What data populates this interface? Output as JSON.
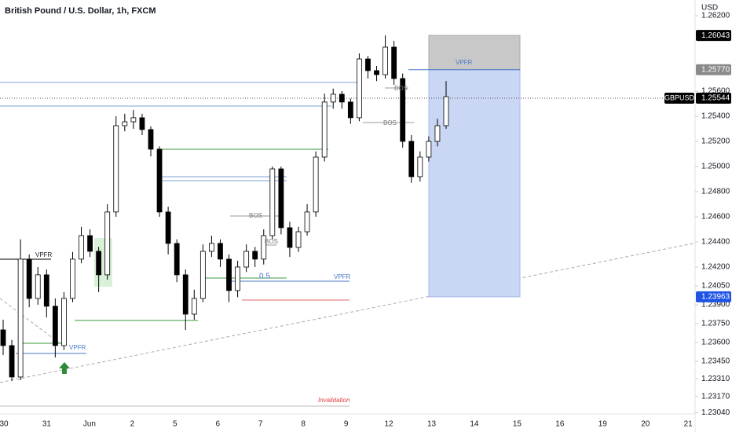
{
  "chart_data": {
    "type": "candlestick",
    "title": "British Pound / U.S. Dollar, 1h, FXCM",
    "currency": "USD",
    "symbol_label": "GBPUSD",
    "up_color": "#ffffff",
    "down_color": "#000000",
    "x_labels": [
      "30",
      "31",
      "Jun",
      "2",
      "5",
      "6",
      "7",
      "8",
      "9",
      "12",
      "13",
      "14",
      "15",
      "16",
      "19",
      "20",
      "21"
    ],
    "open": [
      1.237,
      1.23575,
      1.23325,
      1.24263,
      1.2395,
      1.24138,
      1.23888,
      1.23575,
      1.2395,
      1.24263,
      1.2445,
      1.24325,
      1.24138,
      1.24638,
      1.25325,
      1.25356,
      1.25388,
      1.25294,
      1.25138,
      1.24638,
      1.24388,
      1.24138,
      1.23825,
      1.2395,
      1.24325,
      1.24388,
      1.24263,
      1.24013,
      1.242,
      1.24325,
      1.24263,
      1.2445,
      1.24981,
      1.24513,
      1.24356,
      1.24481,
      1.24638,
      1.25075,
      1.25513,
      1.25575,
      1.25513,
      1.25388,
      1.25856,
      1.25763,
      1.25731,
      1.2595,
      1.257,
      1.252,
      1.24919,
      1.25075,
      1.252,
      1.25325
    ],
    "high": [
      1.2378,
      1.2362,
      1.2442,
      1.243,
      1.242,
      1.2418,
      1.2395,
      1.24,
      1.2432,
      1.2452,
      1.245,
      1.2436,
      1.247,
      1.254,
      1.2542,
      1.2545,
      1.2542,
      1.2532,
      1.2516,
      1.2468,
      1.2442,
      1.2418,
      1.2402,
      1.2438,
      1.2445,
      1.2442,
      1.243,
      1.2425,
      1.2438,
      1.2436,
      1.245,
      1.25,
      1.25,
      1.2456,
      1.2452,
      1.247,
      1.2512,
      1.2558,
      1.2562,
      1.256,
      1.2554,
      1.259,
      1.2588,
      1.258,
      1.26043,
      1.26,
      1.2574,
      1.2525,
      1.2512,
      1.2524,
      1.2538,
      1.2568
    ],
    "low": [
      1.235,
      1.23294,
      1.233,
      1.2388,
      1.239,
      1.238,
      1.2348,
      1.2354,
      1.2392,
      1.2423,
      1.2428,
      1.24,
      1.241,
      1.246,
      1.2528,
      1.253,
      1.2525,
      1.2508,
      1.246,
      1.243,
      1.2408,
      1.237,
      1.2378,
      1.2392,
      1.2428,
      1.242,
      1.2392,
      1.2396,
      1.2416,
      1.242,
      1.2422,
      1.2442,
      1.2446,
      1.2428,
      1.2432,
      1.2445,
      1.246,
      1.2504,
      1.2546,
      1.2546,
      1.2534,
      1.2536,
      1.257,
      1.2568,
      1.257,
      1.2565,
      1.2515,
      1.2487,
      1.2488,
      1.2504,
      1.2516,
      1.253
    ],
    "close": [
      1.23575,
      1.23325,
      1.24263,
      1.2395,
      1.24138,
      1.23888,
      1.23575,
      1.2395,
      1.24263,
      1.2445,
      1.24325,
      1.24138,
      1.24638,
      1.25325,
      1.25356,
      1.25388,
      1.25294,
      1.25138,
      1.24638,
      1.24388,
      1.24138,
      1.23825,
      1.2395,
      1.24325,
      1.24388,
      1.24263,
      1.24013,
      1.242,
      1.24325,
      1.24263,
      1.2445,
      1.24981,
      1.24513,
      1.24356,
      1.24481,
      1.24638,
      1.25075,
      1.25513,
      1.25575,
      1.25513,
      1.25388,
      1.25856,
      1.25763,
      1.25731,
      1.2595,
      1.257,
      1.252,
      1.24919,
      1.25075,
      1.252,
      1.25325,
      1.25556
    ],
    "ylim": [
      1.23031,
      1.26325
    ],
    "yticks": [
      {
        "value": 1.262,
        "label": "1.26200"
      },
      {
        "value": 1.256,
        "label": "1.25600"
      },
      {
        "value": 1.254,
        "label": "1.25400"
      },
      {
        "value": 1.252,
        "label": "1.25200"
      },
      {
        "value": 1.25,
        "label": "1.25000"
      },
      {
        "value": 1.248,
        "label": "1.24800"
      },
      {
        "value": 1.246,
        "label": "1.24600"
      },
      {
        "value": 1.244,
        "label": "1.24400"
      },
      {
        "value": 1.242,
        "label": "1.24200"
      },
      {
        "value": 1.2405,
        "label": "1.24050"
      },
      {
        "value": 1.239,
        "label": "1.23900"
      },
      {
        "value": 1.2375,
        "label": "1.23750"
      },
      {
        "value": 1.236,
        "label": "1.23600"
      },
      {
        "value": 1.2345,
        "label": "1.23450"
      },
      {
        "value": 1.2331,
        "label": "1.23310"
      },
      {
        "value": 1.2317,
        "label": "1.23170"
      },
      {
        "value": 1.2304,
        "label": "1.23040"
      }
    ],
    "price_labels": [
      {
        "value": 1.26043,
        "color": "#000000"
      },
      {
        "value": 1.2577,
        "label": "1.25770",
        "color": "#8a8a8a"
      },
      {
        "value": 1.25544,
        "color": "#000000"
      },
      {
        "value": 1.23963,
        "color": "#1e53e5"
      }
    ],
    "annotations": [
      "VPFR",
      "VPFR",
      "VPFR",
      "VPFR",
      "BOS",
      "BOS",
      "BOS",
      "BOS",
      "Invalidation"
    ],
    "fib_level": 0.5
  }
}
